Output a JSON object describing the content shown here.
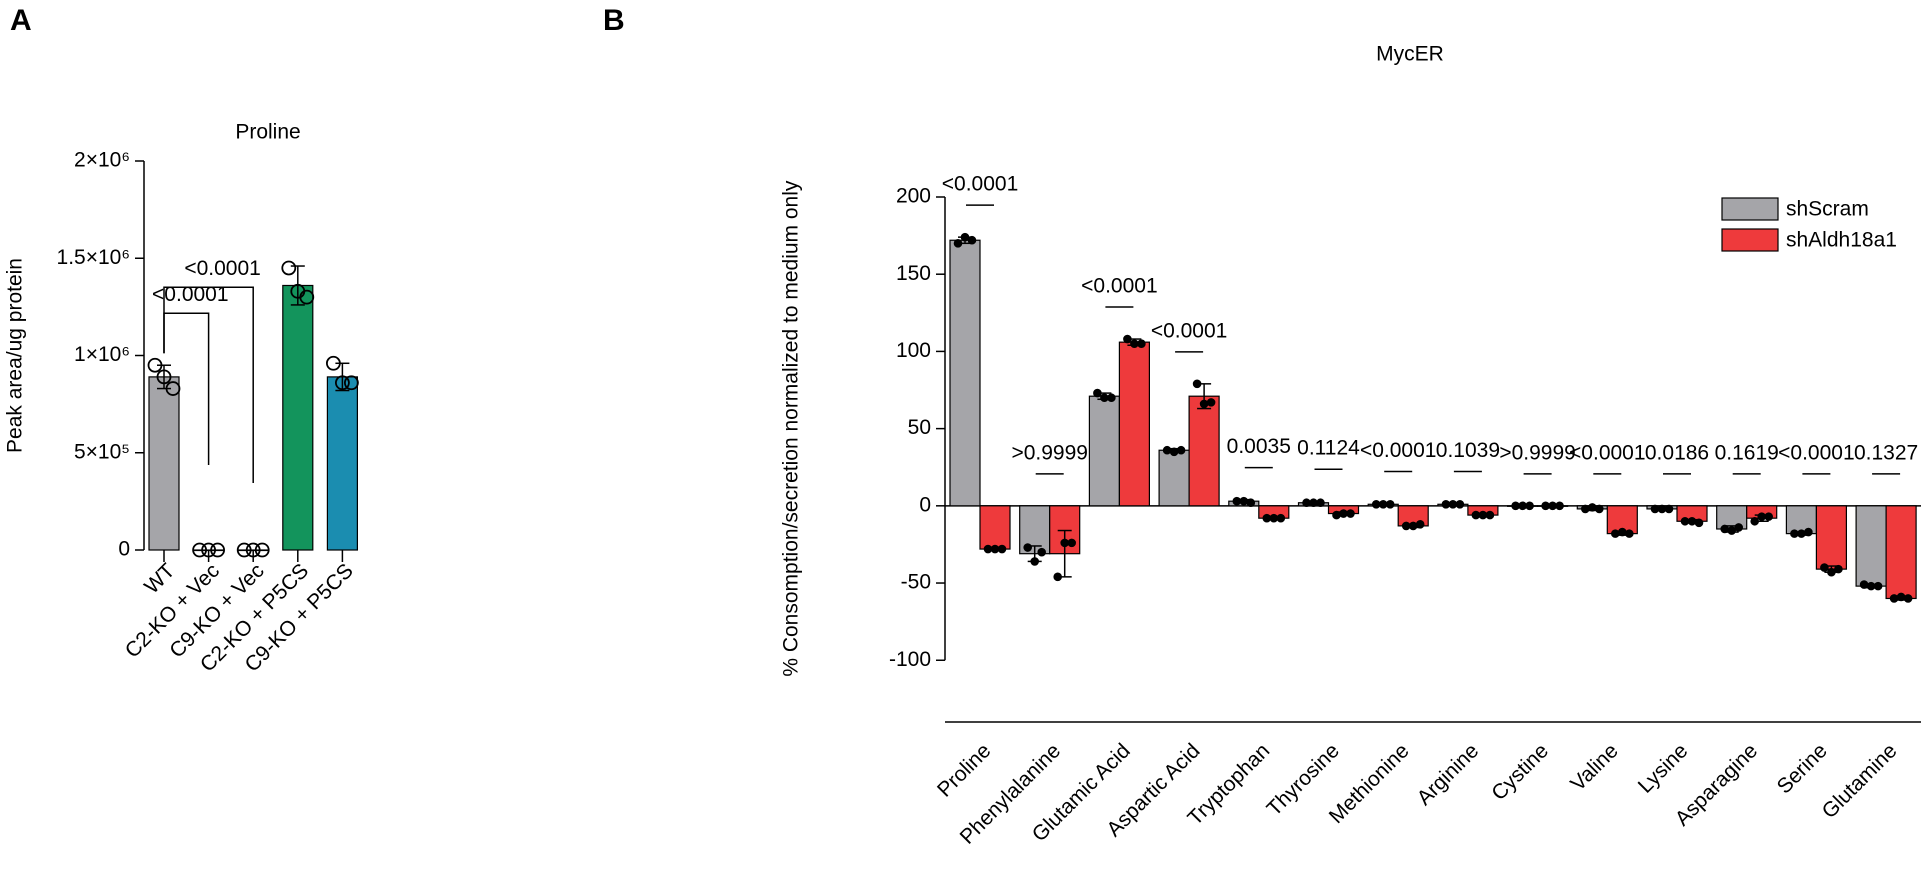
{
  "chart_data": [
    {
      "type": "bar",
      "panel_label": "A",
      "title": "Proline",
      "y_label": "Peak area/ug protein",
      "categories": [
        "WT",
        "C2-KO + Vec",
        "C9-KO + Vec",
        "C2-KO + P5CS",
        "C9-KO + P5CS"
      ],
      "values": [
        890000,
        0,
        0,
        1360000,
        890000
      ],
      "errors": [
        60000,
        0,
        0,
        100000,
        70000
      ],
      "points": [
        [
          950000,
          830000,
          890000
        ],
        [
          0,
          0,
          0
        ],
        [
          0,
          0,
          0
        ],
        [
          1450000,
          1300000,
          1330000
        ],
        [
          960000,
          860000,
          860000
        ]
      ],
      "colors": [
        "#a5a5a9",
        "#a5a5a9",
        "#a5a5a9",
        "#13945c",
        "#1b8db0"
      ],
      "ylim": [
        0,
        2000000
      ],
      "yticks": [
        0,
        {
          "value": 500000,
          "label": "5×10⁵"
        },
        {
          "value": 1000000,
          "label": "1×10⁶"
        },
        {
          "value": 1500000,
          "label": "1.5×10⁶"
        },
        {
          "value": 2000000,
          "label": "2×10⁶"
        }
      ],
      "annotations": [
        "<0.0001",
        "<0.0001"
      ]
    },
    {
      "type": "bar",
      "panel_label": "B",
      "title": "MycER",
      "y_label": "% Consomption/secretion normalized to medium only",
      "categories": [
        "Proline",
        "Phenylalanine",
        "Glutamic Acid",
        "Aspartic Acid",
        "Tryptophan",
        "Thyrosine",
        "Methionine",
        "Arginine",
        "Cystine",
        "Valine",
        "Lysine",
        "Asparagine",
        "Serine",
        "Glutamine"
      ],
      "series": [
        {
          "name": "shScram",
          "color": "#a5a5a9",
          "values": [
            172,
            -31,
            71,
            36,
            3,
            2,
            1,
            1,
            0,
            -2,
            -2,
            -15,
            -18,
            -52
          ],
          "errors": [
            2,
            5,
            2,
            1,
            1,
            1,
            0.5,
            0.5,
            0,
            1,
            0.5,
            2,
            1,
            1
          ],
          "points": [
            [
              170,
              174,
              172
            ],
            [
              -27,
              -36,
              -30
            ],
            [
              73,
              70,
              70
            ],
            [
              36,
              35,
              36
            ],
            [
              3,
              3,
              2
            ],
            [
              2,
              2,
              2
            ],
            [
              1,
              1,
              1
            ],
            [
              1,
              1,
              1
            ],
            [
              0,
              0,
              0
            ],
            [
              -2,
              -1,
              -2
            ],
            [
              -2,
              -2,
              -2
            ],
            [
              -15,
              -16,
              -14
            ],
            [
              -18,
              -18,
              -17
            ],
            [
              -51,
              -52,
              -52
            ]
          ]
        },
        {
          "name": "shAldh18a1",
          "color": "#ee3a3c",
          "values": [
            -28,
            -31,
            106,
            71,
            -8,
            -5,
            -13,
            -6,
            0,
            -18,
            -10,
            -8,
            -41,
            -60
          ],
          "errors": [
            1,
            15,
            2,
            8,
            1,
            1,
            1,
            1,
            0,
            1,
            1,
            2,
            2,
            1
          ],
          "points": [
            [
              -28,
              -28,
              -28
            ],
            [
              -46,
              -24,
              -24
            ],
            [
              108,
              105,
              105
            ],
            [
              79,
              66,
              67
            ],
            [
              -8,
              -8,
              -8
            ],
            [
              -6,
              -5,
              -5
            ],
            [
              -13,
              -13,
              -12
            ],
            [
              -6,
              -6,
              -6
            ],
            [
              0,
              0,
              0
            ],
            [
              -18,
              -17,
              -18
            ],
            [
              -10,
              -10,
              -11
            ],
            [
              -10,
              -7,
              -7
            ],
            [
              -40,
              -43,
              -41
            ],
            [
              -60,
              -59,
              -60
            ]
          ]
        }
      ],
      "p_values": [
        "<0.0001",
        ">0.9999",
        "<0.0001",
        "<0.0001",
        "0.0035",
        "0.1124",
        "<0.0001",
        "0.1039",
        ">0.9999",
        "<0.0001",
        "0.0186",
        "0.1619",
        "<0.0001",
        "0.1327"
      ],
      "ylim": [
        -140,
        200
      ],
      "yticks": [
        -100,
        -50,
        0,
        50,
        100,
        150,
        200
      ],
      "legend": "upper right"
    }
  ]
}
